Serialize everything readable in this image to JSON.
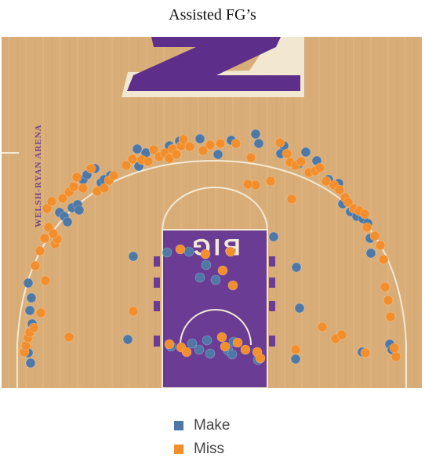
{
  "colors": {
    "make": "#4e79a7",
    "miss": "#f28e2b",
    "court_wood": "#d9ad78",
    "court_wood_dark": "#c99a62",
    "paint": "#6b3c93",
    "line": "#f3ead6"
  },
  "chart_data": {
    "type": "scatter",
    "title": "Assisted FG’s",
    "xlabel": "",
    "ylabel": "",
    "grid": false,
    "legend_position": "bottom",
    "background": "basketball half-court",
    "court_text": {
      "logo": "Z",
      "paint_logo": "BIG",
      "sideline": "WELSH-RYAN ARENA"
    },
    "series": [
      {
        "name": "Make",
        "color": "#4e79a7",
        "points": [
          [
            36,
            361
          ],
          [
            40,
            380
          ],
          [
            38,
            396
          ],
          [
            41,
            413
          ],
          [
            36,
            450
          ],
          [
            39,
            463
          ],
          [
            76,
            271
          ],
          [
            82,
            276
          ],
          [
            86,
            283
          ],
          [
            92,
            265
          ],
          [
            99,
            261
          ],
          [
            101,
            268
          ],
          [
            106,
            229
          ],
          [
            111,
            223
          ],
          [
            121,
            215
          ],
          [
            129,
            233
          ],
          [
            133,
            229
          ],
          [
            141,
            224
          ],
          [
            175,
            190
          ],
          [
            186,
            195
          ],
          [
            177,
            212
          ],
          [
            216,
            186
          ],
          [
            229,
            180
          ],
          [
            255,
            177
          ],
          [
            278,
            197
          ],
          [
            295,
            179
          ],
          [
            326,
            171
          ],
          [
            330,
            183
          ],
          [
            362,
            186
          ],
          [
            358,
            196
          ],
          [
            381,
            209
          ],
          [
            390,
            194
          ],
          [
            404,
            205
          ],
          [
            419,
            229
          ],
          [
            432,
            234
          ],
          [
            437,
            260
          ],
          [
            447,
            270
          ],
          [
            455,
            276
          ],
          [
            463,
            279
          ],
          [
            469,
            285
          ],
          [
            472,
            304
          ],
          [
            473,
            323
          ],
          [
            170,
            327
          ],
          [
            213,
            322
          ],
          [
            241,
            321
          ],
          [
            263,
            338
          ],
          [
            255,
            354
          ],
          [
            275,
            357
          ],
          [
            349,
            302
          ],
          [
            378,
            341
          ],
          [
            382,
            393
          ],
          [
            462,
            449
          ],
          [
            497,
            439
          ],
          [
            500,
            446
          ],
          [
            163,
            433
          ],
          [
            218,
            442
          ],
          [
            245,
            438
          ],
          [
            254,
            446
          ],
          [
            264,
            434
          ],
          [
            268,
            451
          ],
          [
            291,
            447
          ],
          [
            296,
            452
          ],
          [
            298,
            436
          ],
          [
            329,
            459
          ],
          [
            377,
            458
          ]
        ]
      },
      {
        "name": "Miss",
        "color": "#f28e2b",
        "points": [
          [
            31,
            449
          ],
          [
            33,
            441
          ],
          [
            36,
            431
          ],
          [
            38,
            424
          ],
          [
            43,
            418
          ],
          [
            52,
            399
          ],
          [
            58,
            358
          ],
          [
            45,
            339
          ],
          [
            51,
            320
          ],
          [
            57,
            304
          ],
          [
            62,
            290
          ],
          [
            70,
            311
          ],
          [
            73,
            305
          ],
          [
            68,
            298
          ],
          [
            60,
            266
          ],
          [
            66,
            257
          ],
          [
            80,
            253
          ],
          [
            88,
            245
          ],
          [
            94,
            238
          ],
          [
            98,
            226
          ],
          [
            106,
            240
          ],
          [
            116,
            215
          ],
          [
            124,
            244
          ],
          [
            133,
            240
          ],
          [
            139,
            230
          ],
          [
            145,
            224
          ],
          [
            161,
            211
          ],
          [
            169,
            203
          ],
          [
            181,
            204
          ],
          [
            189,
            206
          ],
          [
            196,
            191
          ],
          [
            203,
            200
          ],
          [
            210,
            195
          ],
          [
            216,
            202
          ],
          [
            220,
            190
          ],
          [
            225,
            197
          ],
          [
            231,
            186
          ],
          [
            234,
            178
          ],
          [
            242,
            187
          ],
          [
            259,
            192
          ],
          [
            268,
            185
          ],
          [
            281,
            183
          ],
          [
            301,
            183
          ],
          [
            320,
            201
          ],
          [
            326,
            236
          ],
          [
            316,
            235
          ],
          [
            345,
            231
          ],
          [
            372,
            254
          ],
          [
            357,
            182
          ],
          [
            366,
            196
          ],
          [
            370,
            207
          ],
          [
            377,
            211
          ],
          [
            384,
            206
          ],
          [
            394,
            220
          ],
          [
            402,
            218
          ],
          [
            408,
            214
          ],
          [
            416,
            231
          ],
          [
            426,
            236
          ],
          [
            433,
            242
          ],
          [
            440,
            252
          ],
          [
            444,
            258
          ],
          [
            451,
            266
          ],
          [
            458,
            269
          ],
          [
            465,
            273
          ],
          [
            468,
            290
          ],
          [
            478,
            301
          ],
          [
            485,
            313
          ],
          [
            489,
            331
          ],
          [
            491,
            366
          ],
          [
            495,
            383
          ],
          [
            498,
            404
          ],
          [
            503,
            444
          ],
          [
            505,
            455
          ],
          [
            230,
            318
          ],
          [
            262,
            324
          ],
          [
            294,
            321
          ],
          [
            284,
            345
          ],
          [
            297,
            364
          ],
          [
            170,
            397
          ],
          [
            88,
            430
          ],
          [
            216,
            439
          ],
          [
            231,
            443
          ],
          [
            238,
            449
          ],
          [
            283,
            430
          ],
          [
            287,
            442
          ],
          [
            303,
            437
          ],
          [
            313,
            446
          ],
          [
            411,
            417
          ],
          [
            428,
            432
          ],
          [
            436,
            427
          ],
          [
            466,
            450
          ],
          [
            328,
            449
          ],
          [
            332,
            457
          ],
          [
            377,
            446
          ]
        ]
      }
    ]
  }
}
